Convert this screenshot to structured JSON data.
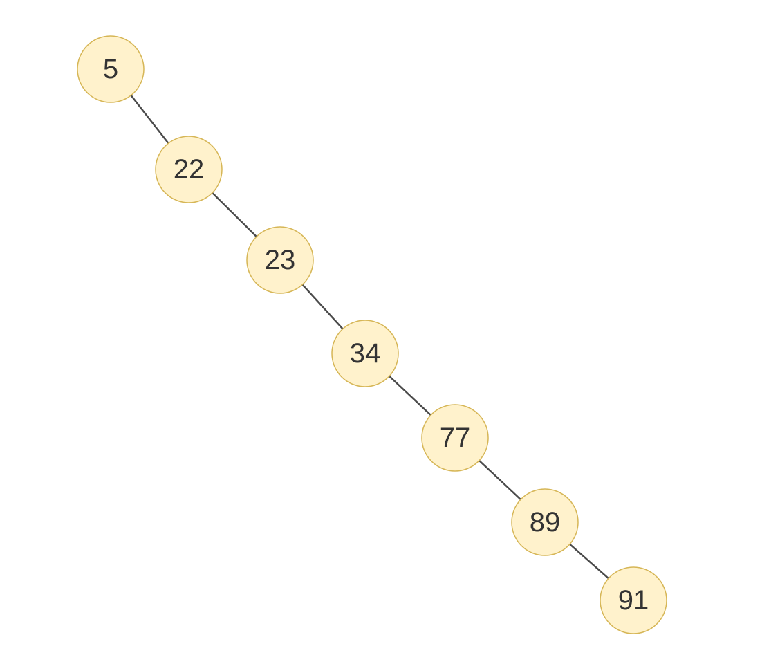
{
  "diagram": {
    "type": "binary-search-tree",
    "layout": "right-skewed chain",
    "colors": {
      "node_fill": "#fff2cc",
      "node_stroke": "#d6b656",
      "edge": "#4a4a4a",
      "label": "#333333"
    },
    "nodes": [
      {
        "id": "n5",
        "label": "5"
      },
      {
        "id": "n22",
        "label": "22"
      },
      {
        "id": "n23",
        "label": "23"
      },
      {
        "id": "n34",
        "label": "34"
      },
      {
        "id": "n77",
        "label": "77"
      },
      {
        "id": "n89",
        "label": "89"
      },
      {
        "id": "n91",
        "label": "91"
      }
    ],
    "edges": [
      {
        "from": "n5",
        "to": "n22"
      },
      {
        "from": "n22",
        "to": "n23"
      },
      {
        "from": "n23",
        "to": "n34"
      },
      {
        "from": "n34",
        "to": "n77"
      },
      {
        "from": "n77",
        "to": "n89"
      },
      {
        "from": "n89",
        "to": "n91"
      }
    ]
  }
}
